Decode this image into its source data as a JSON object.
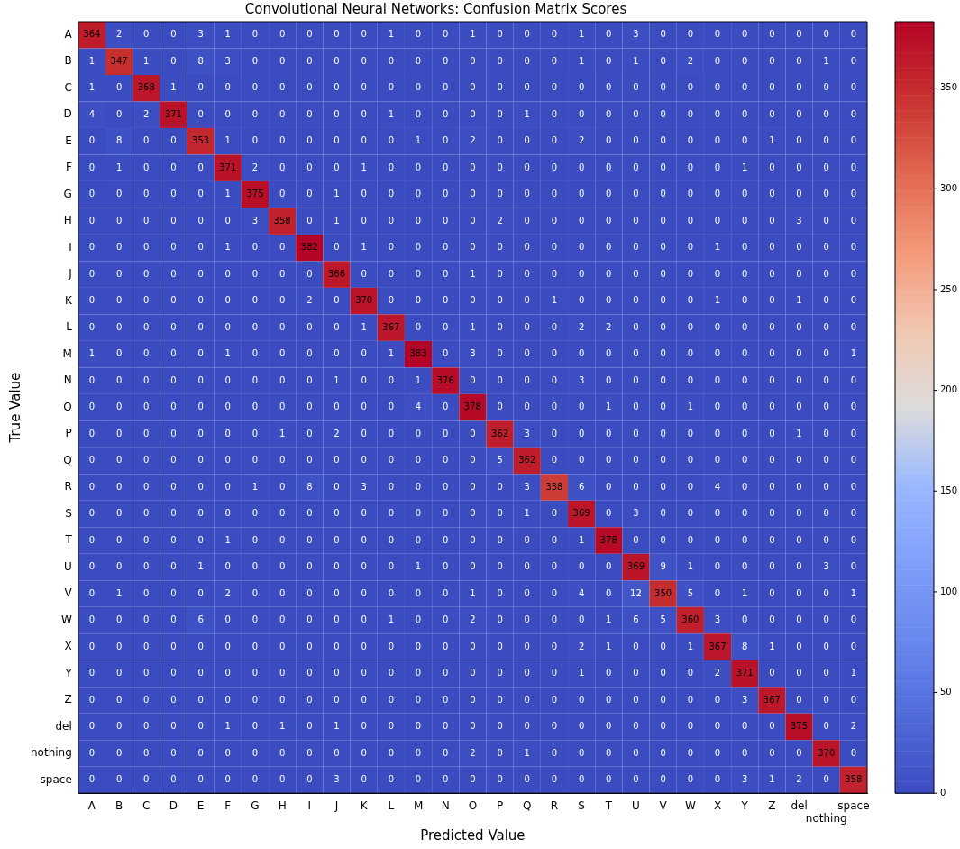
{
  "chart_data": {
    "type": "heatmap",
    "title": "Convolutional Neural Networks: Confusion Matrix Scores",
    "xlabel": "Predicted Value",
    "ylabel": "True Value",
    "categories": [
      "A",
      "B",
      "C",
      "D",
      "E",
      "F",
      "G",
      "H",
      "I",
      "J",
      "K",
      "L",
      "M",
      "N",
      "O",
      "P",
      "Q",
      "R",
      "S",
      "T",
      "U",
      "V",
      "W",
      "X",
      "Y",
      "Z",
      "del",
      "nothing",
      "space"
    ],
    "y_categories": [
      "A",
      "B",
      "C",
      "D",
      "E",
      "F",
      "G",
      "H",
      "I",
      "J",
      "K",
      "L",
      "M",
      "N",
      "O",
      "P",
      "Q",
      "R",
      "S",
      "T",
      "U",
      "V",
      "W",
      "X",
      "Y",
      "Z",
      "del",
      "nothing",
      "space"
    ],
    "cells": [
      [
        364,
        2,
        0,
        0,
        3,
        1,
        0,
        0,
        0,
        0,
        0,
        1,
        0,
        0,
        1,
        0,
        0,
        0,
        1,
        0,
        3,
        0,
        0,
        0,
        0,
        0,
        0,
        0,
        0
      ],
      [
        1,
        347,
        1,
        0,
        8,
        3,
        0,
        0,
        0,
        0,
        0,
        0,
        0,
        0,
        0,
        0,
        0,
        0,
        1,
        0,
        1,
        0,
        2,
        0,
        0,
        0,
        0,
        1,
        0
      ],
      [
        1,
        0,
        368,
        1,
        0,
        0,
        0,
        0,
        0,
        0,
        0,
        0,
        0,
        0,
        0,
        0,
        0,
        0,
        0,
        0,
        0,
        0,
        0,
        0,
        0,
        0,
        0,
        0,
        0
      ],
      [
        4,
        0,
        2,
        371,
        0,
        0,
        0,
        0,
        0,
        0,
        0,
        1,
        0,
        0,
        0,
        0,
        1,
        0,
        0,
        0,
        0,
        0,
        0,
        0,
        0,
        0,
        0,
        0,
        0
      ],
      [
        0,
        8,
        0,
        0,
        353,
        1,
        0,
        0,
        0,
        0,
        0,
        0,
        1,
        0,
        2,
        0,
        0,
        0,
        2,
        0,
        0,
        0,
        0,
        0,
        0,
        1,
        0,
        0,
        0
      ],
      [
        0,
        1,
        0,
        0,
        0,
        371,
        2,
        0,
        0,
        0,
        1,
        0,
        0,
        0,
        0,
        0,
        0,
        0,
        0,
        0,
        0,
        0,
        0,
        0,
        1,
        0,
        0,
        0,
        0
      ],
      [
        0,
        0,
        0,
        0,
        0,
        1,
        375,
        0,
        0,
        1,
        0,
        0,
        0,
        0,
        0,
        0,
        0,
        0,
        0,
        0,
        0,
        0,
        0,
        0,
        0,
        0,
        0,
        0,
        0
      ],
      [
        0,
        0,
        0,
        0,
        0,
        0,
        3,
        358,
        0,
        1,
        0,
        0,
        0,
        0,
        0,
        2,
        0,
        0,
        0,
        0,
        0,
        0,
        0,
        0,
        0,
        0,
        3,
        0,
        0
      ],
      [
        0,
        0,
        0,
        0,
        0,
        1,
        0,
        0,
        382,
        0,
        1,
        0,
        0,
        0,
        0,
        0,
        0,
        0,
        0,
        0,
        0,
        0,
        0,
        1,
        0,
        0,
        0,
        0,
        0
      ],
      [
        0,
        0,
        0,
        0,
        0,
        0,
        0,
        0,
        0,
        366,
        0,
        0,
        0,
        0,
        1,
        0,
        0,
        0,
        0,
        0,
        0,
        0,
        0,
        0,
        0,
        0,
        0,
        0,
        0
      ],
      [
        0,
        0,
        0,
        0,
        0,
        0,
        0,
        0,
        2,
        0,
        370,
        0,
        0,
        0,
        0,
        0,
        0,
        1,
        0,
        0,
        0,
        0,
        0,
        1,
        0,
        0,
        1,
        0,
        0
      ],
      [
        0,
        0,
        0,
        0,
        0,
        0,
        0,
        0,
        0,
        0,
        1,
        367,
        0,
        0,
        1,
        0,
        0,
        0,
        2,
        2,
        0,
        0,
        0,
        0,
        0,
        0,
        0,
        0,
        0
      ],
      [
        1,
        0,
        0,
        0,
        0,
        1,
        0,
        0,
        0,
        0,
        0,
        1,
        383,
        0,
        3,
        0,
        0,
        0,
        0,
        0,
        0,
        0,
        0,
        0,
        0,
        0,
        0,
        0,
        1
      ],
      [
        0,
        0,
        0,
        0,
        0,
        0,
        0,
        0,
        0,
        1,
        0,
        0,
        1,
        376,
        0,
        0,
        0,
        0,
        3,
        0,
        0,
        0,
        0,
        0,
        0,
        0,
        0,
        0,
        0
      ],
      [
        0,
        0,
        0,
        0,
        0,
        0,
        0,
        0,
        0,
        0,
        0,
        0,
        4,
        0,
        378,
        0,
        0,
        0,
        0,
        1,
        0,
        0,
        1,
        0,
        0,
        0,
        0,
        0,
        0
      ],
      [
        0,
        0,
        0,
        0,
        0,
        0,
        0,
        1,
        0,
        2,
        0,
        0,
        0,
        0,
        0,
        362,
        3,
        0,
        0,
        0,
        0,
        0,
        0,
        0,
        0,
        0,
        1,
        0,
        0
      ],
      [
        0,
        0,
        0,
        0,
        0,
        0,
        0,
        0,
        0,
        0,
        0,
        0,
        0,
        0,
        0,
        5,
        362,
        0,
        0,
        0,
        0,
        0,
        0,
        0,
        0,
        0,
        0,
        0,
        0
      ],
      [
        0,
        0,
        0,
        0,
        0,
        0,
        1,
        0,
        8,
        0,
        3,
        0,
        0,
        0,
        0,
        0,
        3,
        338,
        6,
        0,
        0,
        0,
        0,
        4,
        0,
        0,
        0,
        0,
        0
      ],
      [
        0,
        0,
        0,
        0,
        0,
        0,
        0,
        0,
        0,
        0,
        0,
        0,
        0,
        0,
        0,
        0,
        1,
        0,
        369,
        0,
        3,
        0,
        0,
        0,
        0,
        0,
        0,
        0,
        0
      ],
      [
        0,
        0,
        0,
        0,
        0,
        1,
        0,
        0,
        0,
        0,
        0,
        0,
        0,
        0,
        0,
        0,
        0,
        0,
        1,
        378,
        0,
        0,
        0,
        0,
        0,
        0,
        0,
        0,
        0
      ],
      [
        0,
        0,
        0,
        0,
        1,
        0,
        0,
        0,
        0,
        0,
        0,
        0,
        1,
        0,
        0,
        0,
        0,
        0,
        0,
        0,
        369,
        9,
        1,
        0,
        0,
        0,
        0,
        3,
        0
      ],
      [
        0,
        1,
        0,
        0,
        0,
        2,
        0,
        0,
        0,
        0,
        0,
        0,
        0,
        0,
        1,
        0,
        0,
        0,
        4,
        0,
        12,
        350,
        5,
        0,
        1,
        0,
        0,
        0,
        1
      ],
      [
        0,
        0,
        0,
        0,
        6,
        0,
        0,
        0,
        0,
        0,
        0,
        1,
        0,
        0,
        2,
        0,
        0,
        0,
        0,
        1,
        6,
        5,
        360,
        3,
        0,
        0,
        0,
        0,
        0
      ],
      [
        0,
        0,
        0,
        0,
        0,
        0,
        0,
        0,
        0,
        0,
        0,
        0,
        0,
        0,
        0,
        0,
        0,
        0,
        2,
        1,
        0,
        0,
        1,
        367,
        8,
        1,
        0,
        0,
        0
      ],
      [
        0,
        0,
        0,
        0,
        0,
        0,
        0,
        0,
        0,
        0,
        0,
        0,
        0,
        0,
        0,
        0,
        0,
        0,
        1,
        0,
        0,
        0,
        0,
        2,
        371,
        0,
        0,
        0,
        1
      ],
      [
        0,
        0,
        0,
        0,
        0,
        0,
        0,
        0,
        0,
        0,
        0,
        0,
        0,
        0,
        0,
        0,
        0,
        0,
        0,
        0,
        0,
        0,
        0,
        0,
        3,
        367,
        0,
        0,
        0
      ],
      [
        0,
        0,
        0,
        0,
        0,
        1,
        0,
        1,
        0,
        1,
        0,
        0,
        0,
        0,
        0,
        0,
        0,
        0,
        0,
        0,
        0,
        0,
        0,
        0,
        0,
        0,
        375,
        0,
        2
      ],
      [
        0,
        0,
        0,
        0,
        0,
        0,
        0,
        0,
        0,
        0,
        0,
        0,
        0,
        0,
        2,
        0,
        1,
        0,
        0,
        0,
        0,
        0,
        0,
        0,
        0,
        0,
        0,
        370,
        0
      ],
      [
        0,
        0,
        0,
        0,
        0,
        0,
        0,
        0,
        0,
        3,
        0,
        0,
        0,
        0,
        0,
        0,
        0,
        0,
        0,
        0,
        0,
        0,
        0,
        0,
        3,
        1,
        2,
        0,
        358
      ]
    ],
    "clim": [
      0,
      383
    ],
    "cticks": [
      0,
      50,
      100,
      150,
      200,
      250,
      300,
      350
    ],
    "data_labels": true
  }
}
